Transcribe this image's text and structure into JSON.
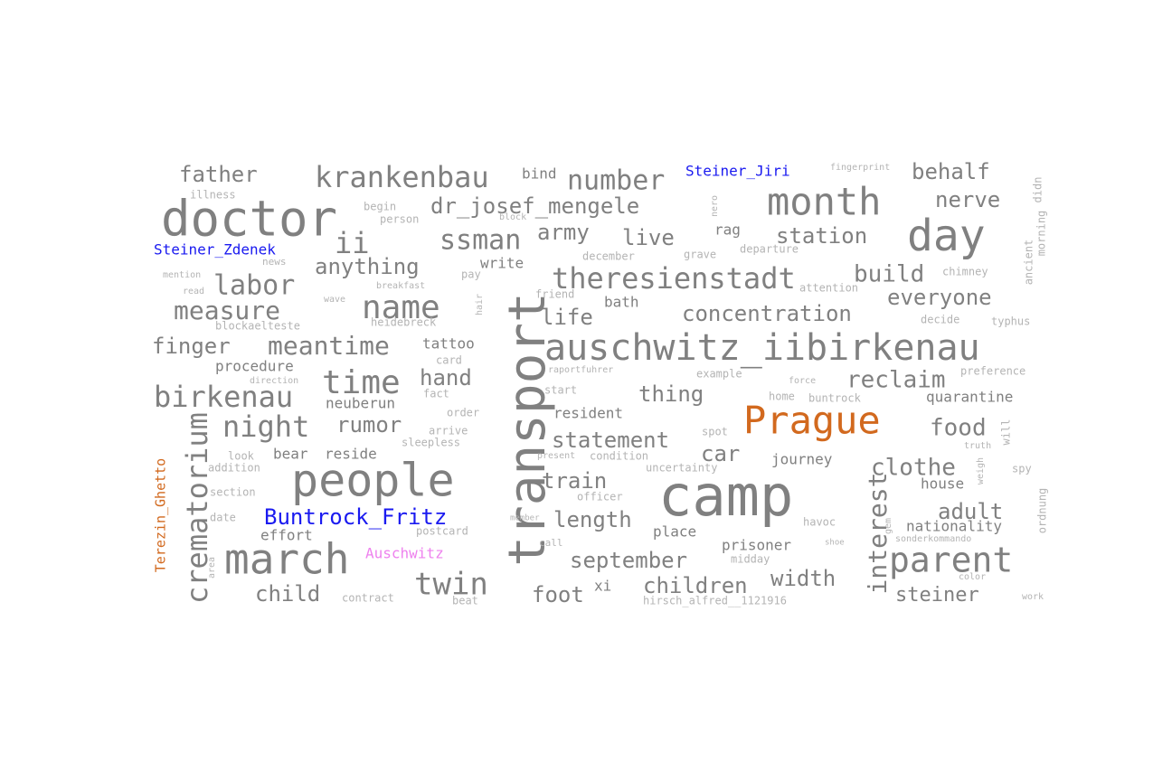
{
  "colors": {
    "grey": "#808080",
    "light_grey": "#b4b4b4",
    "faint_grey": "#cfcfcf",
    "person_blue": "#1a1af0",
    "place_orange": "#d2691e",
    "place_pink": "#ee82ee"
  },
  "words": [
    {
      "text": "doctor",
      "size": 54,
      "color": "grey",
      "rotate": 0
    },
    {
      "text": "camp",
      "size": 62,
      "color": "grey",
      "rotate": 0
    },
    {
      "text": "transport",
      "size": 56,
      "color": "grey",
      "rotate": -90
    },
    {
      "text": "people",
      "size": 50,
      "color": "grey",
      "rotate": 0
    },
    {
      "text": "day",
      "size": 48,
      "color": "grey",
      "rotate": 0
    },
    {
      "text": "march",
      "size": 46,
      "color": "grey",
      "rotate": 0
    },
    {
      "text": "month",
      "size": 42,
      "color": "grey",
      "rotate": 0
    },
    {
      "text": "auschwitz_iibirkenau",
      "size": 40,
      "color": "grey",
      "rotate": 0
    },
    {
      "text": "Prague",
      "size": 42,
      "color": "place_orange",
      "rotate": 0
    },
    {
      "text": "parent",
      "size": 38,
      "color": "grey",
      "rotate": 0
    },
    {
      "text": "name",
      "size": 36,
      "color": "grey",
      "rotate": 0
    },
    {
      "text": "time",
      "size": 36,
      "color": "grey",
      "rotate": 0
    },
    {
      "text": "crematorium",
      "size": 32,
      "color": "grey",
      "rotate": -90
    },
    {
      "text": "theresienstadt",
      "size": 32,
      "color": "grey",
      "rotate": 0
    },
    {
      "text": "twin",
      "size": 34,
      "color": "grey",
      "rotate": 0
    },
    {
      "text": "birkenau",
      "size": 32,
      "color": "grey",
      "rotate": 0
    },
    {
      "text": "night",
      "size": 32,
      "color": "grey",
      "rotate": 0
    },
    {
      "text": "krankenbau",
      "size": 32,
      "color": "grey",
      "rotate": 0
    },
    {
      "text": "ii",
      "size": 32,
      "color": "grey",
      "rotate": 0
    },
    {
      "text": "ssman",
      "size": 30,
      "color": "grey",
      "rotate": 0
    },
    {
      "text": "number",
      "size": 30,
      "color": "grey",
      "rotate": 0
    },
    {
      "text": "labor",
      "size": 30,
      "color": "grey",
      "rotate": 0
    },
    {
      "text": "measure",
      "size": 28,
      "color": "grey",
      "rotate": 0
    },
    {
      "text": "meantime",
      "size": 28,
      "color": "grey",
      "rotate": 0
    },
    {
      "text": "interest",
      "size": 28,
      "color": "grey",
      "rotate": -90
    },
    {
      "text": "clothe",
      "size": 26,
      "color": "grey",
      "rotate": 0
    },
    {
      "text": "reclaim",
      "size": 26,
      "color": "grey",
      "rotate": 0
    },
    {
      "text": "food",
      "size": 26,
      "color": "grey",
      "rotate": 0
    },
    {
      "text": "statement",
      "size": 24,
      "color": "grey",
      "rotate": 0
    },
    {
      "text": "children",
      "size": 24,
      "color": "grey",
      "rotate": 0
    },
    {
      "text": "concentration",
      "size": 24,
      "color": "grey",
      "rotate": 0
    },
    {
      "text": "dr_josef_mengele",
      "size": 24,
      "color": "grey",
      "rotate": 0
    },
    {
      "text": "nerve",
      "size": 24,
      "color": "grey",
      "rotate": 0
    },
    {
      "text": "build",
      "size": 26,
      "color": "grey",
      "rotate": 0
    },
    {
      "text": "everyone",
      "size": 24,
      "color": "grey",
      "rotate": 0
    },
    {
      "text": "station",
      "size": 24,
      "color": "grey",
      "rotate": 0
    },
    {
      "text": "live",
      "size": 24,
      "color": "grey",
      "rotate": 0
    },
    {
      "text": "army",
      "size": 24,
      "color": "grey",
      "rotate": 0
    },
    {
      "text": "life",
      "size": 24,
      "color": "grey",
      "rotate": 0
    },
    {
      "text": "anything",
      "size": 24,
      "color": "grey",
      "rotate": 0
    },
    {
      "text": "finger",
      "size": 24,
      "color": "grey",
      "rotate": 0
    },
    {
      "text": "father",
      "size": 24,
      "color": "grey",
      "rotate": 0
    },
    {
      "text": "behalf",
      "size": 24,
      "color": "grey",
      "rotate": 0
    },
    {
      "text": "hand",
      "size": 24,
      "color": "grey",
      "rotate": 0
    },
    {
      "text": "thing",
      "size": 24,
      "color": "grey",
      "rotate": 0
    },
    {
      "text": "rumor",
      "size": 24,
      "color": "grey",
      "rotate": 0
    },
    {
      "text": "train",
      "size": 24,
      "color": "grey",
      "rotate": 0
    },
    {
      "text": "car",
      "size": 24,
      "color": "grey",
      "rotate": 0
    },
    {
      "text": "length",
      "size": 24,
      "color": "grey",
      "rotate": 0
    },
    {
      "text": "adult",
      "size": 24,
      "color": "grey",
      "rotate": 0
    },
    {
      "text": "september",
      "size": 24,
      "color": "grey",
      "rotate": 0
    },
    {
      "text": "width",
      "size": 24,
      "color": "grey",
      "rotate": 0
    },
    {
      "text": "child",
      "size": 24,
      "color": "grey",
      "rotate": 0
    },
    {
      "text": "foot",
      "size": 24,
      "color": "grey",
      "rotate": 0
    },
    {
      "text": "steiner",
      "size": 22,
      "color": "grey",
      "rotate": 0
    },
    {
      "text": "Buntrock_Fritz",
      "size": 24,
      "color": "person_blue",
      "rotate": 0
    },
    {
      "text": "Steiner_Jiri",
      "size": 16,
      "color": "person_blue",
      "rotate": 0
    },
    {
      "text": "Steiner_Zdenek",
      "size": 16,
      "color": "person_blue",
      "rotate": 0
    },
    {
      "text": "Auschwitz",
      "size": 16,
      "color": "place_pink",
      "rotate": 0
    },
    {
      "text": "Terezin_Ghetto",
      "size": 15,
      "color": "place_orange",
      "rotate": -90
    },
    {
      "text": "house",
      "size": 16,
      "color": "grey",
      "rotate": 0
    },
    {
      "text": "nationality",
      "size": 16,
      "color": "grey",
      "rotate": 0
    },
    {
      "text": "prisoner",
      "size": 16,
      "color": "grey",
      "rotate": 0
    },
    {
      "text": "journey",
      "size": 16,
      "color": "grey",
      "rotate": 0
    },
    {
      "text": "quarantine",
      "size": 16,
      "color": "grey",
      "rotate": 0
    },
    {
      "text": "resident",
      "size": 16,
      "color": "grey",
      "rotate": 0
    },
    {
      "text": "place",
      "size": 16,
      "color": "grey",
      "rotate": 0
    },
    {
      "text": "tattoo",
      "size": 16,
      "color": "grey",
      "rotate": 0
    },
    {
      "text": "bath",
      "size": 16,
      "color": "grey",
      "rotate": 0
    },
    {
      "text": "write",
      "size": 16,
      "color": "grey",
      "rotate": 0
    },
    {
      "text": "procedure",
      "size": 16,
      "color": "grey",
      "rotate": 0
    },
    {
      "text": "reside",
      "size": 16,
      "color": "grey",
      "rotate": 0
    },
    {
      "text": "bear",
      "size": 16,
      "color": "grey",
      "rotate": 0
    },
    {
      "text": "neuberun",
      "size": 16,
      "color": "grey",
      "rotate": 0
    },
    {
      "text": "effort",
      "size": 16,
      "color": "grey",
      "rotate": 0
    },
    {
      "text": "xi",
      "size": 16,
      "color": "grey",
      "rotate": 0
    },
    {
      "text": "bind",
      "size": 16,
      "color": "grey",
      "rotate": 0
    },
    {
      "text": "rag",
      "size": 16,
      "color": "grey",
      "rotate": 0
    },
    {
      "text": "hirsch_alfred__1121916",
      "size": 12,
      "color": "light_grey",
      "rotate": 0
    },
    {
      "text": "illness",
      "size": 12,
      "color": "light_grey",
      "rotate": 0
    },
    {
      "text": "begin",
      "size": 12,
      "color": "light_grey",
      "rotate": 0
    },
    {
      "text": "person",
      "size": 12,
      "color": "light_grey",
      "rotate": 0
    },
    {
      "text": "news",
      "size": 11,
      "color": "light_grey",
      "rotate": 0
    },
    {
      "text": "mention",
      "size": 10,
      "color": "light_grey",
      "rotate": 0
    },
    {
      "text": "read",
      "size": 10,
      "color": "light_grey",
      "rotate": 0
    },
    {
      "text": "wave",
      "size": 10,
      "color": "light_grey",
      "rotate": 0
    },
    {
      "text": "breakfast",
      "size": 10,
      "color": "light_grey",
      "rotate": 0
    },
    {
      "text": "blockaelteste",
      "size": 12,
      "color": "light_grey",
      "rotate": 0
    },
    {
      "text": "heidebreck",
      "size": 12,
      "color": "light_grey",
      "rotate": 0
    },
    {
      "text": "direction",
      "size": 10,
      "color": "light_grey",
      "rotate": 0
    },
    {
      "text": "fact",
      "size": 12,
      "color": "light_grey",
      "rotate": 0
    },
    {
      "text": "card",
      "size": 12,
      "color": "light_grey",
      "rotate": 0
    },
    {
      "text": "order",
      "size": 12,
      "color": "light_grey",
      "rotate": 0
    },
    {
      "text": "arrive",
      "size": 12,
      "color": "light_grey",
      "rotate": 0
    },
    {
      "text": "sleepless",
      "size": 12,
      "color": "light_grey",
      "rotate": 0
    },
    {
      "text": "look",
      "size": 12,
      "color": "light_grey",
      "rotate": 0
    },
    {
      "text": "addition",
      "size": 12,
      "color": "light_grey",
      "rotate": 0
    },
    {
      "text": "section",
      "size": 12,
      "color": "light_grey",
      "rotate": 0
    },
    {
      "text": "date",
      "size": 12,
      "color": "light_grey",
      "rotate": 0
    },
    {
      "text": "postcard",
      "size": 12,
      "color": "light_grey",
      "rotate": 0
    },
    {
      "text": "contract",
      "size": 12,
      "color": "light_grey",
      "rotate": 0
    },
    {
      "text": "beat",
      "size": 12,
      "color": "light_grey",
      "rotate": 0
    },
    {
      "text": "call",
      "size": 11,
      "color": "light_grey",
      "rotate": 0
    },
    {
      "text": "officer",
      "size": 12,
      "color": "light_grey",
      "rotate": 0
    },
    {
      "text": "condition",
      "size": 12,
      "color": "light_grey",
      "rotate": 0
    },
    {
      "text": "present",
      "size": 10,
      "color": "light_grey",
      "rotate": 0
    },
    {
      "text": "uncertainty",
      "size": 12,
      "color": "light_grey",
      "rotate": 0
    },
    {
      "text": "spot",
      "size": 12,
      "color": "light_grey",
      "rotate": 0
    },
    {
      "text": "start",
      "size": 12,
      "color": "light_grey",
      "rotate": 0
    },
    {
      "text": "raportfuhrer",
      "size": 10,
      "color": "light_grey",
      "rotate": 0
    },
    {
      "text": "example",
      "size": 12,
      "color": "light_grey",
      "rotate": 0
    },
    {
      "text": "force",
      "size": 10,
      "color": "light_grey",
      "rotate": 0
    },
    {
      "text": "home",
      "size": 12,
      "color": "light_grey",
      "rotate": 0
    },
    {
      "text": "buntrock",
      "size": 12,
      "color": "light_grey",
      "rotate": 0
    },
    {
      "text": "friend",
      "size": 12,
      "color": "light_grey",
      "rotate": 0
    },
    {
      "text": "pay",
      "size": 12,
      "color": "light_grey",
      "rotate": 0
    },
    {
      "text": "december",
      "size": 12,
      "color": "light_grey",
      "rotate": 0
    },
    {
      "text": "grave",
      "size": 12,
      "color": "light_grey",
      "rotate": 0
    },
    {
      "text": "departure",
      "size": 12,
      "color": "light_grey",
      "rotate": 0
    },
    {
      "text": "attention",
      "size": 12,
      "color": "light_grey",
      "rotate": 0
    },
    {
      "text": "chimney",
      "size": 12,
      "color": "light_grey",
      "rotate": 0
    },
    {
      "text": "decide",
      "size": 12,
      "color": "light_grey",
      "rotate": 0
    },
    {
      "text": "typhus",
      "size": 12,
      "color": "light_grey",
      "rotate": 0
    },
    {
      "text": "preference",
      "size": 12,
      "color": "light_grey",
      "rotate": 0
    },
    {
      "text": "fingerprint",
      "size": 10,
      "color": "light_grey",
      "rotate": 0
    },
    {
      "text": "truth",
      "size": 10,
      "color": "light_grey",
      "rotate": 0
    },
    {
      "text": "spy",
      "size": 12,
      "color": "light_grey",
      "rotate": 0
    },
    {
      "text": "havoc",
      "size": 12,
      "color": "light_grey",
      "rotate": 0
    },
    {
      "text": "sonderkommando",
      "size": 10,
      "color": "light_grey",
      "rotate": 0
    },
    {
      "text": "color",
      "size": 10,
      "color": "light_grey",
      "rotate": 0
    },
    {
      "text": "work",
      "size": 10,
      "color": "light_grey",
      "rotate": 0
    },
    {
      "text": "midday",
      "size": 12,
      "color": "light_grey",
      "rotate": 0
    },
    {
      "text": "member",
      "size": 9,
      "color": "light_grey",
      "rotate": 0
    },
    {
      "text": "block",
      "size": 10,
      "color": "light_grey",
      "rotate": 0
    },
    {
      "text": "shoe",
      "size": 9,
      "color": "light_grey",
      "rotate": 0
    },
    {
      "text": "hair",
      "size": 10,
      "color": "light_grey",
      "rotate": -90
    },
    {
      "text": "nero",
      "size": 10,
      "color": "light_grey",
      "rotate": -90
    },
    {
      "text": "ancient",
      "size": 12,
      "color": "light_grey",
      "rotate": -90
    },
    {
      "text": "morning",
      "size": 12,
      "color": "light_grey",
      "rotate": -90
    },
    {
      "text": "didn",
      "size": 12,
      "color": "light_grey",
      "rotate": -90
    },
    {
      "text": "will",
      "size": 12,
      "color": "light_grey",
      "rotate": -90
    },
    {
      "text": "weigh",
      "size": 10,
      "color": "light_grey",
      "rotate": -90
    },
    {
      "text": "ordnung",
      "size": 12,
      "color": "light_grey",
      "rotate": -90
    },
    {
      "text": "gem",
      "size": 10,
      "color": "light_grey",
      "rotate": -90
    },
    {
      "text": "area",
      "size": 10,
      "color": "light_grey",
      "rotate": -90
    }
  ]
}
